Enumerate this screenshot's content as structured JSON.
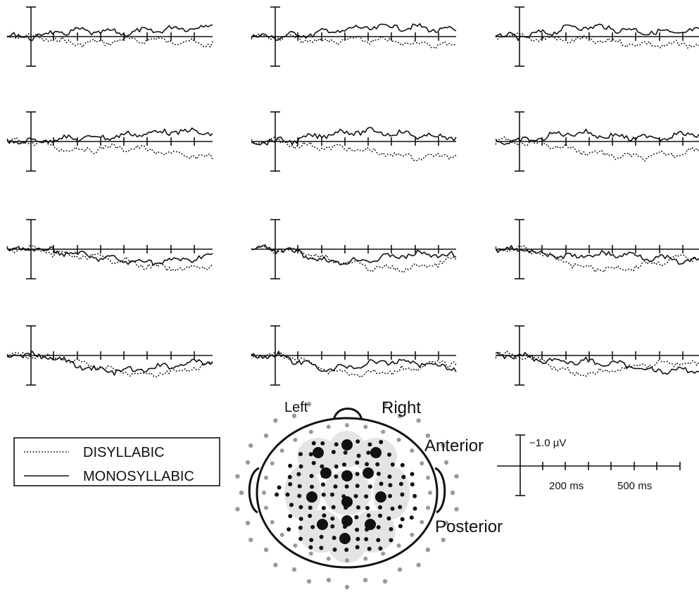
{
  "chart_data": {
    "type": "line",
    "layout": "4 rows x 3 columns of ERP waveforms plus electrode montage",
    "series": [
      {
        "name": "DISYLLABIC",
        "style": "dotted"
      },
      {
        "name": "MONOSYLLABIC",
        "style": "solid"
      }
    ],
    "legend": {
      "placement": "bottom-left",
      "entries": [
        "DISYLLABIC",
        "MONOSYLLABIC"
      ]
    },
    "scale_bar": {
      "amplitude_label": "−1.0 µV",
      "time_labels": [
        "200 ms",
        "500 ms"
      ],
      "ticks": 7
    },
    "head_map": {
      "left_label": "Left",
      "right_label": "Right",
      "anterior_label": "Anterior",
      "posterior_label": "Posterior"
    },
    "grid": false
  }
}
